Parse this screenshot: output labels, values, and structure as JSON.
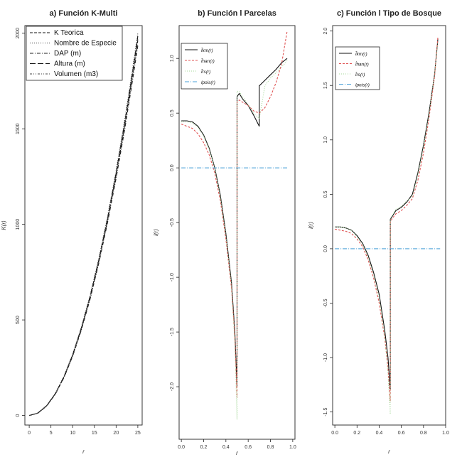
{
  "chart_data": [
    {
      "type": "line",
      "title": "a) Función K-Multi",
      "xlabel": "r",
      "ylabel": "K(r)",
      "xlim": [
        -1,
        26
      ],
      "ylim": [
        -50,
        2040
      ],
      "xticks": [
        0,
        5,
        10,
        15,
        20,
        25
      ],
      "yticks": [
        0,
        500,
        1000,
        1500,
        2000
      ],
      "legend_position": "top-left",
      "series": [
        {
          "name": "K Teorica",
          "dash": "4,2",
          "color": "#111111",
          "x": [
            0,
            2,
            4,
            6,
            8,
            10,
            12,
            14,
            16,
            18,
            20,
            22,
            24,
            25
          ],
          "y": [
            0,
            12.6,
            50.3,
            113,
            201,
            314,
            452,
            616,
            804,
            1018,
            1257,
            1521,
            1810,
            1963
          ]
        },
        {
          "name": "Nombre de Especie",
          "dash": "1,2",
          "color": "#333333",
          "x": [
            0,
            2,
            4,
            6,
            8,
            10,
            12,
            14,
            16,
            18,
            20,
            22,
            24,
            25
          ],
          "y": [
            0,
            13,
            52,
            116,
            206,
            321,
            462,
            628,
            820,
            1036,
            1280,
            1550,
            1845,
            2000
          ]
        },
        {
          "name": "DAP (m)",
          "dash": "5,2,1,2",
          "color": "#222222",
          "x": [
            0,
            2,
            4,
            6,
            8,
            10,
            12,
            14,
            16,
            18,
            20,
            22,
            24,
            25
          ],
          "y": [
            0,
            12,
            49,
            111,
            198,
            310,
            446,
            608,
            795,
            1005,
            1240,
            1500,
            1785,
            1935
          ]
        },
        {
          "name": "Altura (m)",
          "dash": "8,3",
          "color": "#111111",
          "x": [
            0,
            2,
            4,
            6,
            8,
            10,
            12,
            14,
            16,
            18,
            20,
            22,
            24,
            25
          ],
          "y": [
            0,
            13,
            51,
            114,
            203,
            317,
            457,
            622,
            812,
            1027,
            1268,
            1535,
            1828,
            1985
          ]
        },
        {
          "name": "Volumen (m3)",
          "dash": "3,2,1,2,1,2",
          "color": "#444444",
          "x": [
            0,
            2,
            4,
            6,
            8,
            10,
            12,
            14,
            16,
            18,
            20,
            22,
            24,
            25
          ],
          "y": [
            0,
            12.8,
            50.8,
            114,
            202,
            316,
            455,
            619,
            808,
            1022,
            1262,
            1528,
            1818,
            1972
          ]
        }
      ]
    },
    {
      "type": "line",
      "title": "b) Función l Parcelas",
      "xlabel": "r",
      "ylabel": "l(r)",
      "xlim": [
        -0.02,
        1.02
      ],
      "ylim": [
        -2.48,
        1.3
      ],
      "xticks": [
        0.0,
        0.2,
        0.4,
        0.6,
        0.8,
        1.0
      ],
      "yticks": [
        -2.0,
        -1.5,
        -1.0,
        -0.5,
        0.0,
        0.5,
        1.0
      ],
      "legend_position": "top-left",
      "series": [
        {
          "name": "l̂km(r)",
          "dash": "",
          "color": "#111111",
          "x": [
            0.0,
            0.05,
            0.1,
            0.15,
            0.2,
            0.25,
            0.3,
            0.35,
            0.4,
            0.45,
            0.48,
            0.5,
            0.5,
            0.52,
            0.55,
            0.6,
            0.65,
            0.7,
            0.7,
            0.75,
            0.8,
            0.85,
            0.9,
            0.95
          ],
          "y": [
            0.43,
            0.43,
            0.42,
            0.38,
            0.3,
            0.18,
            0.0,
            -0.25,
            -0.6,
            -1.05,
            -1.5,
            -2.0,
            0.65,
            0.68,
            0.63,
            0.57,
            0.48,
            0.38,
            0.75,
            0.8,
            0.85,
            0.9,
            0.96,
            1.0
          ]
        },
        {
          "name": "l̂han(r)",
          "dash": "3,2",
          "color": "#e05555",
          "x": [
            0.0,
            0.05,
            0.1,
            0.15,
            0.2,
            0.25,
            0.3,
            0.35,
            0.4,
            0.45,
            0.48,
            0.5,
            0.5,
            0.52,
            0.55,
            0.6,
            0.65,
            0.7,
            0.75,
            0.8,
            0.85,
            0.9,
            0.95
          ],
          "y": [
            0.4,
            0.38,
            0.36,
            0.31,
            0.23,
            0.12,
            -0.05,
            -0.3,
            -0.65,
            -1.1,
            -1.55,
            -2.1,
            0.6,
            0.62,
            0.6,
            0.57,
            0.52,
            0.5,
            0.55,
            0.65,
            0.78,
            0.95,
            1.25
          ]
        },
        {
          "name": "l̂rs(r)",
          "dash": "1,2",
          "color": "#a6d89a",
          "x": [
            0.0,
            0.05,
            0.1,
            0.15,
            0.2,
            0.25,
            0.3,
            0.35,
            0.4,
            0.45,
            0.48,
            0.5,
            0.5,
            0.52,
            0.55,
            0.6,
            0.65,
            0.7,
            0.75,
            0.8,
            0.85,
            0.9,
            0.95
          ],
          "y": [
            0.42,
            0.42,
            0.41,
            0.37,
            0.29,
            0.17,
            -0.01,
            -0.27,
            -0.62,
            -1.08,
            -1.6,
            -2.3,
            0.7,
            0.7,
            0.65,
            0.58,
            0.5,
            0.45,
            0.75,
            0.82,
            0.87,
            0.92,
            0.98
          ]
        },
        {
          "name": "lpois(r)",
          "dash": "6,2,1,2",
          "color": "#4aa0d8",
          "x": [
            0.0,
            0.95
          ],
          "y": [
            0.0,
            0.0
          ]
        }
      ]
    },
    {
      "type": "line",
      "title": "c) Función l Tipo de Bosque",
      "xlabel": "r",
      "ylabel": "l(r)",
      "xlim": [
        -0.02,
        1.0
      ],
      "ylim": [
        -1.62,
        2.05
      ],
      "xticks": [
        0.0,
        0.2,
        0.4,
        0.6,
        0.8,
        1.0
      ],
      "yticks": [
        -1.5,
        -1.0,
        -0.5,
        0.0,
        0.5,
        1.0,
        1.5,
        2.0
      ],
      "legend_position": "top-left",
      "series": [
        {
          "name": "l̂km(r)",
          "dash": "",
          "color": "#111111",
          "x": [
            0.0,
            0.05,
            0.1,
            0.15,
            0.2,
            0.25,
            0.3,
            0.35,
            0.4,
            0.45,
            0.48,
            0.5,
            0.5,
            0.52,
            0.55,
            0.6,
            0.65,
            0.7,
            0.75,
            0.8,
            0.85,
            0.9,
            0.93
          ],
          "y": [
            0.2,
            0.2,
            0.19,
            0.17,
            0.12,
            0.05,
            -0.06,
            -0.22,
            -0.42,
            -0.75,
            -1.0,
            -1.3,
            0.27,
            0.3,
            0.35,
            0.38,
            0.43,
            0.5,
            0.7,
            0.95,
            1.25,
            1.6,
            1.93
          ]
        },
        {
          "name": "l̂han(r)",
          "dash": "3,2",
          "color": "#e05555",
          "x": [
            0.0,
            0.05,
            0.1,
            0.15,
            0.2,
            0.25,
            0.3,
            0.35,
            0.4,
            0.45,
            0.48,
            0.5,
            0.5,
            0.52,
            0.55,
            0.6,
            0.65,
            0.7,
            0.75,
            0.8,
            0.85,
            0.9,
            0.93
          ],
          "y": [
            0.18,
            0.17,
            0.16,
            0.14,
            0.09,
            0.02,
            -0.1,
            -0.27,
            -0.5,
            -0.82,
            -1.1,
            -1.4,
            0.25,
            0.28,
            0.32,
            0.35,
            0.4,
            0.46,
            0.63,
            0.88,
            1.2,
            1.58,
            1.95
          ]
        },
        {
          "name": "l̂rs(r)",
          "dash": "1,2",
          "color": "#a6d89a",
          "x": [
            0.0,
            0.05,
            0.1,
            0.15,
            0.2,
            0.25,
            0.3,
            0.35,
            0.4,
            0.45,
            0.48,
            0.5,
            0.5,
            0.52,
            0.55,
            0.6,
            0.65,
            0.7,
            0.75,
            0.8,
            0.85,
            0.9,
            0.93
          ],
          "y": [
            0.2,
            0.2,
            0.19,
            0.17,
            0.11,
            0.04,
            -0.08,
            -0.25,
            -0.46,
            -0.8,
            -1.15,
            -1.52,
            0.28,
            0.31,
            0.36,
            0.39,
            0.44,
            0.48,
            0.68,
            0.93,
            1.23,
            1.6,
            1.9
          ]
        },
        {
          "name": "lpois(r)",
          "dash": "6,2,1,2",
          "color": "#4aa0d8",
          "x": [
            0.0,
            0.95
          ],
          "y": [
            0.0,
            0.0
          ]
        }
      ]
    }
  ]
}
